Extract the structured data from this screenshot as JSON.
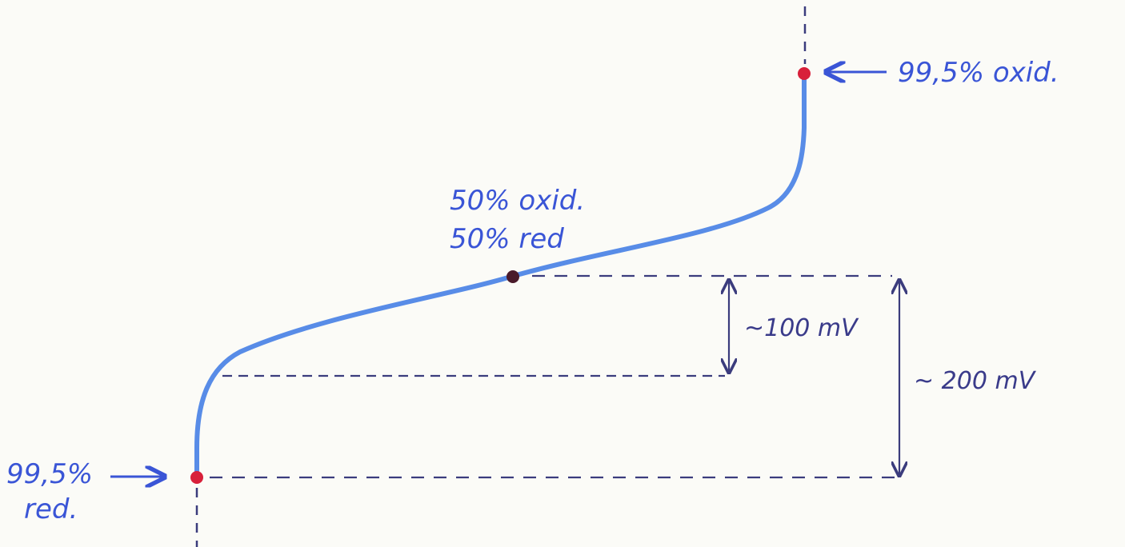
{
  "labels": {
    "top_point": "99,5% oxid.",
    "mid_point_line1": "50% oxid.",
    "mid_point_line2": "50% red",
    "bottom_point_line1": "99,5%",
    "bottom_point_line2": "red.",
    "span_small": "~100 mV",
    "span_large": "~ 200 mV"
  },
  "colors": {
    "curve": "#4f86e6",
    "hand_blue": "#3a55d6",
    "dimension": "#3b3c7d",
    "point_red": "#d8203a",
    "point_dark": "#4a1a2a"
  }
}
